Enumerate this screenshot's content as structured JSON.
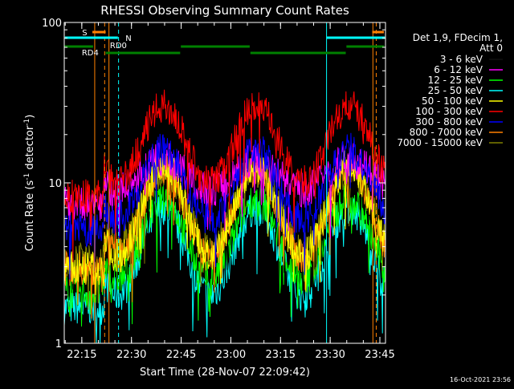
{
  "chart_data": {
    "type": "line",
    "title": "RHESSI Observing Summary Count Rates",
    "xlabel": "Start Time (28-Nov-07 22:09:42)",
    "ylabel_main": "Count Rate (s",
    "ylabel_sup1": "-1",
    "ylabel_mid": " detector",
    "ylabel_sup2": "-1",
    "ylabel_end": ")",
    "yscale": "log",
    "ylim": [
      1,
      100
    ],
    "xlim_minutes": [
      0,
      97
    ],
    "x_tick_labels": [
      "22:15",
      "22:30",
      "22:45",
      "23:00",
      "23:15",
      "23:30",
      "23:45"
    ],
    "x_tick_minutes": [
      5.3,
      20.3,
      35.3,
      50.3,
      65.3,
      80.3,
      95.3
    ],
    "y_tick_labels": [
      "1",
      "10",
      "100"
    ],
    "y_tick_values": [
      1,
      10,
      100
    ],
    "legend_header": [
      "Det 1,9, FDecim 1,",
      "Att 0"
    ],
    "series": [
      {
        "name": "3 - 6 keV",
        "color": "#000000",
        "peak": 12,
        "trough": 4
      },
      {
        "name": "6 - 12 keV",
        "color": "#ff00ff",
        "peak": 14,
        "trough": 9
      },
      {
        "name": "12 - 25 keV",
        "color": "#00ff00",
        "peak": 8,
        "trough": 2.5
      },
      {
        "name": "25 - 50 keV",
        "color": "#00ffff",
        "peak": 7,
        "trough": 2
      },
      {
        "name": "50 - 100 keV",
        "color": "#ffff00",
        "peak": 13,
        "trough": 3.5
      },
      {
        "name": "100 - 300 keV",
        "color": "#ff0000",
        "peak": 30,
        "trough": 10
      },
      {
        "name": "300 - 800 keV",
        "color": "#0000ff",
        "peak": 16,
        "trough": 6
      },
      {
        "name": "800 - 7000 keV",
        "color": "#ff8000",
        "peak": 12,
        "trough": 3.5
      },
      {
        "name": "7000 - 15000 keV",
        "color": "#808000",
        "peak": 12,
        "trough": 4
      }
    ],
    "annotations": {
      "saa": {
        "label": "S",
        "color": "#ff8000"
      },
      "night": {
        "label": "N",
        "color": "#00ffff"
      },
      "rd0": {
        "label": "RD0",
        "color": "#008000"
      },
      "rd4": {
        "label": "RD4",
        "color": "#008000"
      }
    },
    "timestamp": "16-Oct-2021 23:56"
  }
}
